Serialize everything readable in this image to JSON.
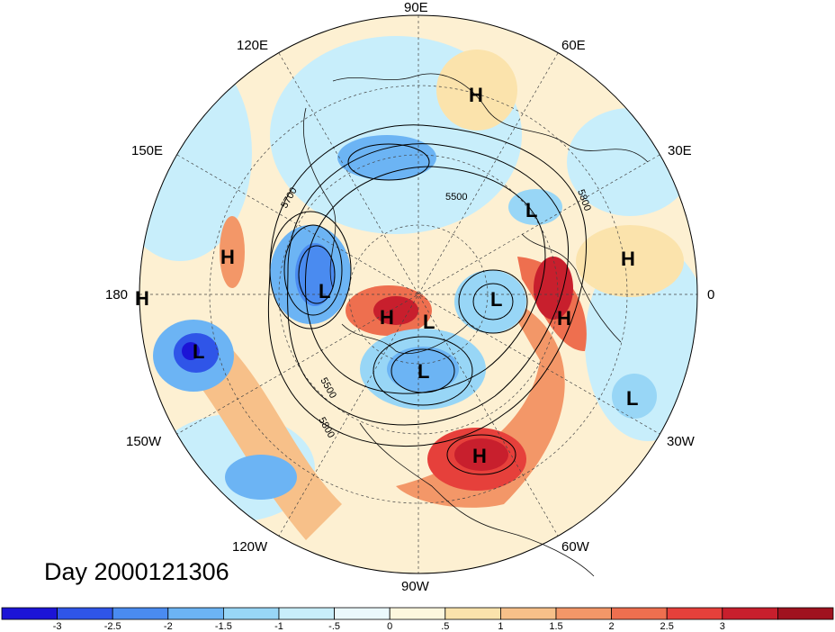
{
  "title": "Day 2000121306",
  "longitude_labels": [
    "90E",
    "120E",
    "60E",
    "150E",
    "30E",
    "180",
    "0",
    "150W",
    "30W",
    "120W",
    "60W",
    "90W"
  ],
  "contour_labels": [
    "5700",
    "5500",
    "5800",
    "5500",
    "5800"
  ],
  "pressure_centers": [
    {
      "type": "H",
      "label": "H"
    },
    {
      "type": "H",
      "label": "H"
    },
    {
      "type": "H",
      "label": "H"
    },
    {
      "type": "H",
      "label": "H"
    },
    {
      "type": "H",
      "label": "H"
    },
    {
      "type": "H",
      "label": "H"
    },
    {
      "type": "H",
      "label": "H"
    },
    {
      "type": "L",
      "label": "L"
    },
    {
      "type": "L",
      "label": "L"
    },
    {
      "type": "L",
      "label": "L"
    },
    {
      "type": "L",
      "label": "L"
    },
    {
      "type": "L",
      "label": "L"
    },
    {
      "type": "L",
      "label": "L"
    },
    {
      "type": "L",
      "label": "L"
    }
  ],
  "colorbar": {
    "colors": [
      "#1c14d6",
      "#2f55e8",
      "#4a8bf0",
      "#6cb4f4",
      "#98d6f6",
      "#c8eefb",
      "#eaf8fc",
      "#fdf7de",
      "#fbe3ac",
      "#f7c089",
      "#f39768",
      "#ee6f4f",
      "#e6403b",
      "#c81f2d",
      "#a0121f"
    ],
    "tick_labels": [
      "-3",
      "-2.5",
      "-2",
      "-1.5",
      "-1",
      "-.5",
      "0",
      ".5",
      "1",
      "1.5",
      "2",
      "2.5",
      "3"
    ]
  }
}
